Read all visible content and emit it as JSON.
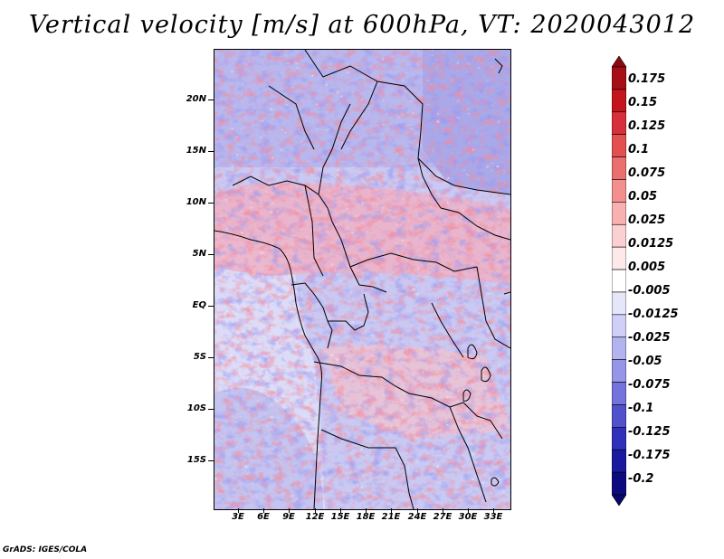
{
  "title": "Vertical velocity [m/s] at 600hPa, VT: 2020043012",
  "credit": "GrADS: IGES/COLA",
  "map": {
    "variable": "Vertical velocity",
    "units": "m/s",
    "level": "600hPa",
    "valid_time": "2020043012",
    "lon_range": [
      0,
      35
    ],
    "lat_range": [
      -20,
      24
    ],
    "lat_axis": [
      {
        "label": "20N",
        "lat": 20
      },
      {
        "label": "15N",
        "lat": 15
      },
      {
        "label": "10N",
        "lat": 10
      },
      {
        "label": "5N",
        "lat": 5
      },
      {
        "label": "EQ",
        "lat": 0
      },
      {
        "label": "5S",
        "lat": -5
      },
      {
        "label": "10S",
        "lat": -10
      },
      {
        "label": "15S",
        "lat": -15
      }
    ],
    "lon_axis": [
      {
        "label": "3E",
        "lon": 3
      },
      {
        "label": "6E",
        "lon": 6
      },
      {
        "label": "9E",
        "lon": 9
      },
      {
        "label": "12E",
        "lon": 12
      },
      {
        "label": "15E",
        "lon": 15
      },
      {
        "label": "18E",
        "lon": 18
      },
      {
        "label": "21E",
        "lon": 21
      },
      {
        "label": "24E",
        "lon": 24
      },
      {
        "label": "27E",
        "lon": 27
      },
      {
        "label": "30E",
        "lon": 30
      },
      {
        "label": "33E",
        "lon": 33
      }
    ]
  },
  "colorbar": {
    "labels": [
      "0.175",
      "0.15",
      "0.125",
      "0.1",
      "0.075",
      "0.05",
      "0.025",
      "0.0125",
      "0.005",
      "-0.005",
      "-0.0125",
      "-0.025",
      "-0.05",
      "-0.075",
      "-0.1",
      "-0.125",
      "-0.175",
      "-0.2"
    ],
    "colors": [
      "#a50f15",
      "#c4141c",
      "#d7303a",
      "#e35050",
      "#ec6f6f",
      "#f29090",
      "#f7b1b1",
      "#fbd0d0",
      "#fde9e9",
      "#ffffff",
      "#e6e6fb",
      "#cfcff7",
      "#b3b3f0",
      "#9696e8",
      "#7474dc",
      "#5151cc",
      "#3030b8",
      "#1a1aa0",
      "#0b0b7e"
    ],
    "arrow_top_color": "#8b0a10",
    "arrow_bottom_color": "#07076a"
  }
}
